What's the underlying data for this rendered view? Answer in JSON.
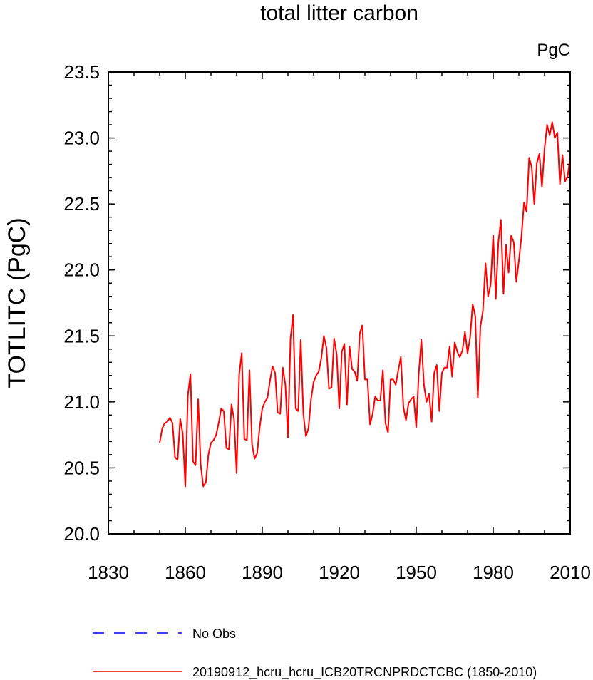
{
  "chart_data": {
    "type": "line",
    "title": "total litter carbon",
    "units_label": "PgC",
    "ylabel": "TOTLITC  (PgC)",
    "xlabel": "",
    "xlim": [
      1830,
      2010
    ],
    "ylim": [
      20.0,
      23.5
    ],
    "xticks": [
      1830,
      1860,
      1890,
      1920,
      1950,
      1980,
      2010
    ],
    "xtick_labels": [
      "1830",
      "1860",
      "1890",
      "1920",
      "1950",
      "1980",
      "2010"
    ],
    "yticks": [
      20.0,
      20.5,
      21.0,
      21.5,
      22.0,
      22.5,
      23.0,
      23.5
    ],
    "ytick_labels": [
      "20.0",
      "20.5",
      "21.0",
      "21.5",
      "22.0",
      "22.5",
      "23.0",
      "23.5"
    ],
    "grid": false,
    "series": [
      {
        "name": "20190912_hcru_hcru_ICB20TRCNPRDCTCBC (1850-2010)",
        "color": "#ff0000",
        "dash": "solid",
        "x_start": 1850,
        "x_step": 1,
        "values": [
          20.69,
          20.8,
          20.84,
          20.85,
          20.88,
          20.84,
          20.58,
          20.56,
          20.87,
          20.76,
          20.36,
          21.05,
          21.21,
          20.55,
          20.52,
          21.02,
          20.52,
          20.36,
          20.39,
          20.6,
          20.69,
          20.71,
          20.75,
          20.84,
          20.95,
          20.93,
          20.65,
          20.64,
          20.98,
          20.87,
          20.46,
          21.21,
          21.37,
          20.72,
          20.71,
          21.24,
          20.68,
          20.57,
          20.61,
          20.81,
          20.95,
          21.0,
          21.03,
          21.16,
          21.27,
          21.22,
          20.92,
          20.91,
          21.26,
          21.13,
          20.73,
          21.48,
          21.66,
          20.95,
          20.93,
          21.47,
          20.91,
          20.74,
          20.8,
          21.02,
          21.15,
          21.2,
          21.23,
          21.33,
          21.5,
          21.41,
          21.1,
          21.11,
          21.48,
          21.36,
          20.95,
          21.38,
          21.44,
          20.98,
          21.42,
          21.25,
          21.23,
          21.16,
          21.52,
          21.58,
          21.17,
          21.17,
          20.83,
          20.91,
          21.04,
          21.01,
          21.01,
          21.24,
          20.84,
          20.77,
          21.17,
          21.17,
          21.13,
          21.24,
          21.34,
          20.96,
          20.86,
          20.99,
          21.02,
          21.04,
          20.81,
          21.22,
          21.47,
          21.13,
          21.0,
          21.06,
          20.85,
          21.22,
          21.28,
          20.93,
          21.22,
          21.26,
          21.26,
          21.42,
          21.19,
          21.45,
          21.38,
          21.34,
          21.39,
          21.53,
          21.37,
          21.49,
          21.74,
          21.65,
          21.03,
          21.57,
          21.69,
          22.05,
          21.8,
          21.89,
          22.26,
          21.78,
          22.21,
          22.38,
          21.82,
          22.19,
          21.98,
          22.26,
          22.21,
          21.91,
          22.07,
          22.25,
          22.51,
          22.44,
          22.85,
          22.78,
          22.5,
          22.81,
          22.88,
          22.63,
          22.92,
          23.1,
          23.02,
          23.12,
          23.0,
          23.04,
          22.65,
          22.87,
          22.67,
          22.71,
          22.85
        ]
      },
      {
        "name": "No Obs",
        "color": "#0000ff",
        "dash": "dashed",
        "values": []
      }
    ],
    "legend": {
      "placement": "bottom-center",
      "entries": [
        {
          "label": "No Obs",
          "color": "#0000ff",
          "dash": "dashed"
        },
        {
          "label": "20190912_hcru_hcru_ICB20TRCNPRDCTCBC (1850-2010)",
          "color": "#ff0000",
          "dash": "solid"
        }
      ]
    }
  }
}
